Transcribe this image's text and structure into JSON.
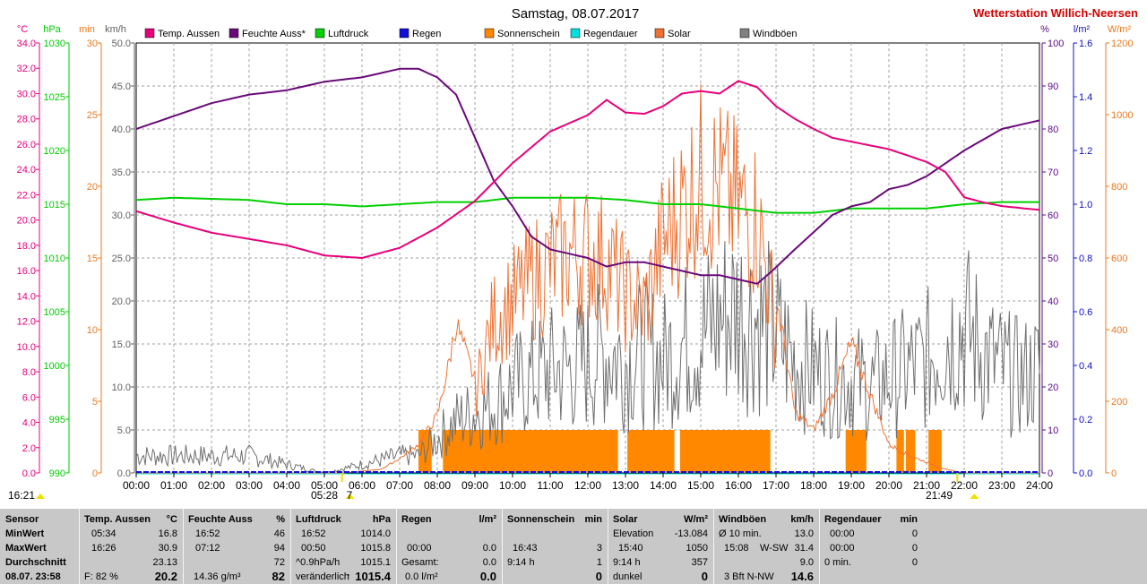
{
  "chart_data": {
    "type": "line",
    "title": "Samstag, 08.07.2017",
    "station": "Wetterstation Willich-Neersen",
    "x_ticks": [
      "00:00",
      "01:00",
      "02:00",
      "03:00",
      "04:00",
      "05:00",
      "06:00",
      "07:00",
      "08:00",
      "09:00",
      "10:00",
      "11:00",
      "12:00",
      "13:00",
      "14:00",
      "15:00",
      "16:00",
      "17:00",
      "18:00",
      "19:00",
      "20:00",
      "21:00",
      "22:00",
      "23:00",
      "24:00"
    ],
    "sunrise_label": "05:28",
    "sunrise_num": "7",
    "sunset_label": "21:49",
    "current_time_label": "16:21",
    "axes": {
      "temp": {
        "unit": "°C",
        "min": 0,
        "max": 34,
        "ticks": [
          "0.0",
          "2.0",
          "4.0",
          "6.0",
          "8.0",
          "10.0",
          "12.0",
          "14.0",
          "16.0",
          "18.0",
          "20.0",
          "22.0",
          "24.0",
          "26.0",
          "28.0",
          "30.0",
          "32.0",
          "34.0"
        ],
        "color": "#e8007a"
      },
      "pressure": {
        "unit": "hPa",
        "min": 990,
        "max": 1030,
        "ticks": [
          "990",
          "995",
          "1000",
          "1005",
          "1010",
          "1015",
          "1020",
          "1025",
          "1030"
        ],
        "color": "#00cc00"
      },
      "minutes": {
        "unit": "min",
        "min": 0,
        "max": 30,
        "ticks": [
          "0",
          "5",
          "10",
          "15",
          "20",
          "25",
          "30"
        ],
        "color": "#e87a20"
      },
      "wind": {
        "unit": "km/h",
        "min": 0,
        "max": 50,
        "ticks": [
          "0.0",
          "5.0",
          "10.0",
          "15.0",
          "20.0",
          "25.0",
          "30.0",
          "35.0",
          "40.0",
          "45.0",
          "50.0"
        ],
        "color": "#606060"
      },
      "humidity": {
        "unit": "%",
        "min": 0,
        "max": 100,
        "ticks": [
          "0",
          "10",
          "20",
          "30",
          "40",
          "50",
          "60",
          "70",
          "80",
          "90",
          "100"
        ],
        "color": "#5a0a8a"
      },
      "rain": {
        "unit": "l/m²",
        "min": 0,
        "max": 1.6,
        "ticks": [
          "0.0",
          "0.2",
          "0.4",
          "0.6",
          "0.8",
          "1.0",
          "1.2",
          "1.4",
          "1.6"
        ],
        "color": "#1010c0"
      },
      "solar": {
        "unit": "W/m²",
        "min": 0,
        "max": 1200,
        "ticks": [
          "0",
          "200",
          "400",
          "600",
          "800",
          "1000",
          "1200"
        ],
        "color": "#e87a20"
      }
    },
    "legend": [
      {
        "name": "Temp. Aussen",
        "color": "#e8007a"
      },
      {
        "name": "Feuchte Auss*",
        "color": "#6a0a7a"
      },
      {
        "name": "Luftdruck",
        "color": "#00d000"
      },
      {
        "name": "Regen",
        "color": "#1010d8"
      },
      {
        "name": "Sonnenschein",
        "color": "#ff8800"
      },
      {
        "name": "Regendauer",
        "color": "#00e0e0"
      },
      {
        "name": "Solar",
        "color": "#f07030"
      },
      {
        "name": "Windböen",
        "color": "#808080"
      }
    ],
    "series": {
      "temp_hours": [
        0,
        1,
        2,
        3,
        4,
        5,
        6,
        7,
        8,
        9,
        10,
        11,
        12,
        12.5,
        13,
        13.5,
        14,
        14.5,
        15,
        15.5,
        16,
        16.5,
        17,
        17.5,
        18,
        18.5,
        19,
        20,
        21,
        21.5,
        22,
        22.5,
        23,
        24
      ],
      "temp_values": [
        20.7,
        19.8,
        19.0,
        18.5,
        18.0,
        17.2,
        17.0,
        17.8,
        19.4,
        21.5,
        24.5,
        27.0,
        28.3,
        29.5,
        28.5,
        28.4,
        29.0,
        30.0,
        30.2,
        30.0,
        31.0,
        30.5,
        29.0,
        28.0,
        27.2,
        26.5,
        26.2,
        25.6,
        24.6,
        23.8,
        21.8,
        21.4,
        21.1,
        20.8
      ],
      "hum_hours": [
        0,
        1,
        2,
        3,
        4,
        5,
        6,
        7,
        7.5,
        8,
        8.5,
        9,
        9.5,
        10,
        10.5,
        11,
        11.5,
        12,
        12.5,
        13,
        13.5,
        14,
        14.5,
        15,
        15.5,
        16,
        16.5,
        16.9,
        17.5,
        18,
        18.5,
        19,
        19.5,
        20,
        20.5,
        21,
        21.5,
        22,
        23,
        24
      ],
      "hum_values": [
        80,
        83,
        86,
        88,
        89,
        91,
        92,
        94,
        94,
        92,
        88,
        78,
        68,
        62,
        55,
        52,
        51,
        50,
        48,
        49,
        49,
        48,
        47,
        46,
        46,
        45,
        44,
        47,
        52,
        56,
        60,
        62,
        63,
        66,
        67,
        69,
        72,
        75,
        80,
        82
      ],
      "press_hours": [
        0,
        1,
        2,
        3,
        4,
        5,
        6,
        7,
        8,
        9,
        10,
        11,
        12,
        13,
        14,
        15,
        16,
        17,
        18,
        19,
        20,
        21,
        22,
        23,
        24
      ],
      "press_values": [
        1015.4,
        1015.6,
        1015.5,
        1015.4,
        1015.0,
        1015.0,
        1014.8,
        1015.0,
        1015.2,
        1015.2,
        1015.6,
        1015.6,
        1015.6,
        1015.4,
        1015.0,
        1015.0,
        1014.6,
        1014.2,
        1014.2,
        1014.6,
        1014.6,
        1014.6,
        1015.0,
        1015.2,
        1015.2
      ],
      "solar_hours": [
        0,
        4.5,
        5.5,
        6.5,
        7.0,
        7.5,
        8.0,
        8.3,
        8.5,
        8.8,
        9.0,
        9.3,
        9.5,
        10.0,
        10.5,
        11.0,
        11.5,
        12.0,
        12.5,
        13.0,
        13.5,
        14.0,
        14.5,
        15.0,
        15.5,
        16.0,
        16.5,
        17.0,
        17.5,
        18.0,
        18.5,
        19.0,
        19.5,
        20.0,
        20.5,
        21.0,
        21.5,
        22.0,
        24.0
      ],
      "solar_values": [
        0,
        0,
        0,
        10,
        40,
        80,
        160,
        300,
        420,
        320,
        260,
        430,
        520,
        580,
        650,
        700,
        740,
        740,
        720,
        600,
        560,
        780,
        900,
        1000,
        960,
        900,
        860,
        500,
        170,
        120,
        220,
        360,
        220,
        80,
        50,
        30,
        10,
        0,
        0
      ],
      "wind_hours": [
        0,
        1,
        2,
        3,
        4,
        5,
        6,
        7,
        7.5,
        8,
        8.5,
        9,
        9.5,
        10,
        10.5,
        11,
        11.5,
        12,
        12.5,
        13,
        13.5,
        14,
        14.5,
        15,
        15.5,
        16,
        16.5,
        17,
        17.5,
        18,
        18.5,
        19,
        19.5,
        20,
        20.5,
        21,
        21.5,
        22,
        22.5,
        23,
        23.5,
        24
      ],
      "wind_values": [
        2,
        2,
        2,
        2,
        1,
        0,
        1,
        2,
        2,
        4,
        6,
        7,
        8,
        10,
        11,
        12,
        12,
        13,
        14,
        13,
        14,
        13,
        15,
        16,
        18,
        19,
        18,
        16,
        13,
        12,
        11,
        11,
        10,
        11,
        12,
        13,
        16,
        17,
        14,
        12,
        11,
        12
      ],
      "sunshine_blocks": [
        [
          7.5,
          7.85
        ],
        [
          8.15,
          12.8
        ],
        [
          13.05,
          14.3
        ],
        [
          14.45,
          16.85
        ],
        [
          18.85,
          19.4
        ],
        [
          20.2,
          20.4
        ],
        [
          20.45,
          20.7
        ],
        [
          21.05,
          21.4
        ]
      ],
      "sunshine_level": 3
    }
  },
  "stats": {
    "sensor": {
      "header": "Sensor",
      "rows": [
        "MinWert",
        "MaxWert",
        "Durchschnitt"
      ],
      "footer": "08.07. 23:58"
    },
    "temp": {
      "header": "Temp. Aussen",
      "unit": "°C",
      "min_time": "05:34",
      "min_val": "16.8",
      "max_time": "16:26",
      "max_val": "30.9",
      "avg": "23.13",
      "footer_left": "F: 82 %",
      "footer_right": "20.2"
    },
    "humidity": {
      "header": "Feuchte Auss",
      "unit": "%",
      "min_time": "16:52",
      "min_val": "46",
      "max_time": "07:12",
      "max_val": "94",
      "avg": "72",
      "footer_left": "14.36 g/m³",
      "footer_right": "82"
    },
    "pressure": {
      "header": "Luftdruck",
      "unit": "hPa",
      "min_time": "16:52",
      "min_val": "1014.0",
      "max_time": "00:50",
      "max_val": "1015.8",
      "avg_label": "^0.9hPa/h",
      "avg": "1015.1",
      "footer_left": "veränderlich",
      "footer_arrow": "↑",
      "footer_right": "1015.4"
    },
    "rain": {
      "header": "Regen",
      "unit": "l/m²",
      "r2_left": "00:00",
      "r2_val": "0.0",
      "r3_left": "Gesamt:",
      "r3_val": "0.0",
      "footer_left": "0.0 l/m²",
      "footer_right": "0.0"
    },
    "sunshine": {
      "header": "Sonnenschein",
      "unit": "min",
      "r2_left": "16:43",
      "r2_val": "3",
      "r3_left": "9:14 h",
      "r3_val": "1",
      "footer_right": "0"
    },
    "solar": {
      "header": "Solar",
      "unit": "W/m²",
      "r1_left": "Elevation",
      "r1_val": "-13.084",
      "r2_left": "15:40",
      "r2_val": "1050",
      "r3_left": "9:14 h",
      "r3_val": "357",
      "footer_left": "dunkel",
      "footer_right": "0"
    },
    "wind": {
      "header": "Windböen",
      "unit": "km/h",
      "r1_left": "Ø 10 min.",
      "r1_val": "13.0",
      "r2_left": "15:08",
      "r2_mid": "W-SW",
      "r2_val": "31.4",
      "r3_val": "9.0",
      "footer_left": "3 Bft N-NW",
      "footer_right": "14.6"
    },
    "raindur": {
      "header": "Regendauer",
      "unit": "min",
      "r1_left": "00:00",
      "r1_val": "0",
      "r2_left": "00:00",
      "r2_val": "0",
      "r3_left": "0 min.",
      "r3_val": "0"
    }
  }
}
